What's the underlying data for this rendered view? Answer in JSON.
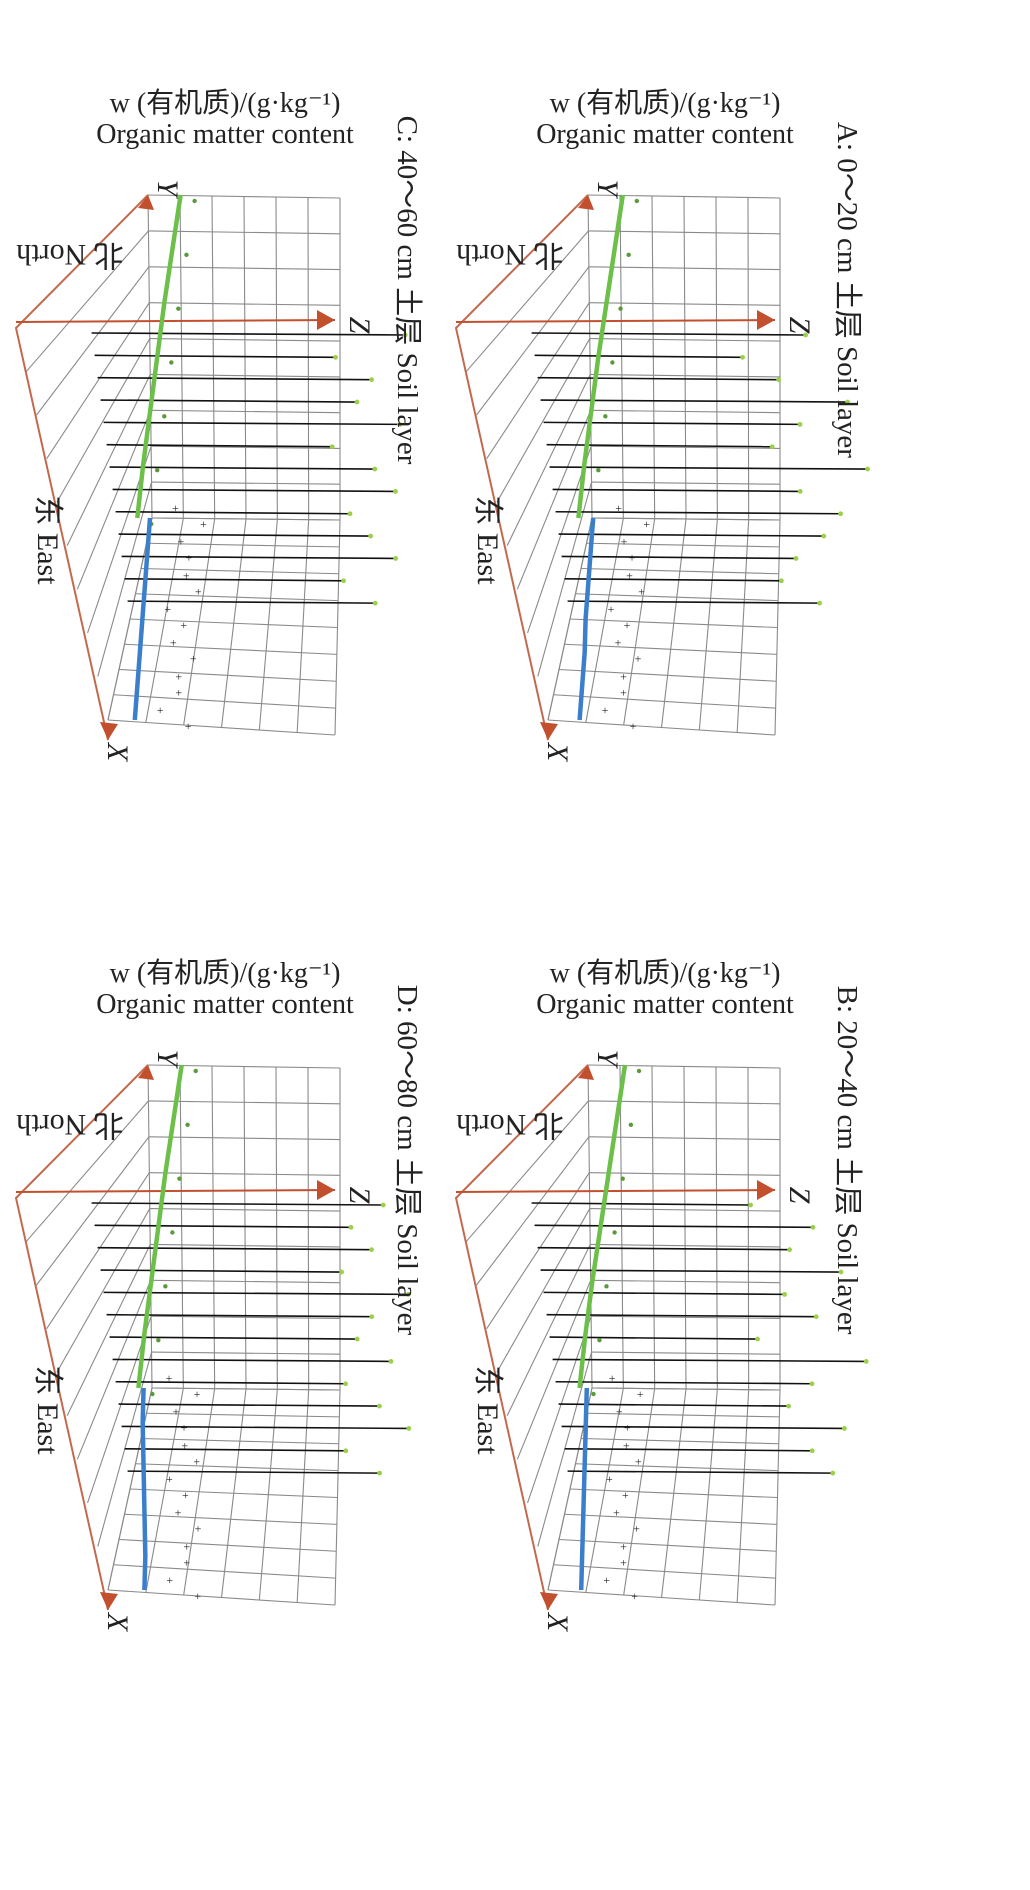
{
  "chart_data": [
    {
      "type": "scatter",
      "panel": "A",
      "title": "A: 0～20 cm 土层 Soil layer",
      "zlabel_cn": "w (有机质)/(g·kg⁻¹)",
      "zlabel_en": "Organic matter content",
      "axis_z": "Z",
      "axis_y": "Y",
      "axis_x": "X",
      "north_label": "北 North",
      "east_label": "东 East",
      "green_trend": [
        0.68,
        0.6,
        0.52,
        0.44,
        0.37,
        0.3,
        0.24
      ],
      "blue_trend": [
        0.12,
        0.15,
        0.18,
        0.21,
        0.25,
        0.28,
        0.31
      ],
      "stick_heights": [
        0.7,
        0.4,
        0.55,
        0.85,
        0.62,
        0.48,
        0.9,
        0.58,
        0.75,
        0.66,
        0.52,
        0.44,
        0.6
      ]
    },
    {
      "type": "scatter",
      "panel": "B",
      "title": "B: 20～40 cm 土层 Soil layer",
      "zlabel_cn": "w (有机质)/(g·kg⁻¹)",
      "zlabel_en": "Organic matter content",
      "axis_z": "Z",
      "axis_y": "Y",
      "axis_x": "X",
      "north_label": "北 North",
      "east_label": "东 East",
      "green_trend": [
        0.7,
        0.62,
        0.54,
        0.46,
        0.38,
        0.31,
        0.25
      ],
      "blue_trend": [
        0.08,
        0.12,
        0.16,
        0.2,
        0.24,
        0.28,
        0.32
      ],
      "stick_heights": [
        0.45,
        0.72,
        0.6,
        0.82,
        0.55,
        0.68,
        0.4,
        0.88,
        0.62,
        0.5,
        0.74,
        0.58,
        0.66
      ]
    },
    {
      "type": "scatter",
      "panel": "C",
      "title": "C: 40～60 cm 土层 Soil layer",
      "zlabel_cn": "w (有机质)/(g·kg⁻¹)",
      "zlabel_en": "Organic matter content",
      "axis_z": "Z",
      "axis_y": "Y",
      "axis_x": "X",
      "north_label": "北 North",
      "east_label": "东 East",
      "green_trend": [
        0.66,
        0.58,
        0.5,
        0.43,
        0.36,
        0.29,
        0.23
      ],
      "blue_trend": [
        0.1,
        0.13,
        0.16,
        0.19,
        0.22,
        0.25,
        0.28
      ],
      "stick_heights": [
        0.88,
        0.55,
        0.7,
        0.62,
        0.8,
        0.48,
        0.66,
        0.74,
        0.52,
        0.6,
        0.7,
        0.45,
        0.58
      ]
    },
    {
      "type": "scatter",
      "panel": "D",
      "title": "D: 60～80 cm 土层 Soil layer",
      "zlabel_cn": "w (有机质)/(g·kg⁻¹)",
      "zlabel_en": "Organic matter content",
      "axis_z": "Z",
      "axis_y": "Y",
      "axis_x": "X",
      "north_label": "北 North",
      "east_label": "东 East",
      "green_trend": [
        0.67,
        0.59,
        0.51,
        0.44,
        0.37,
        0.3,
        0.24
      ],
      "blue_trend": [
        0.06,
        0.1,
        0.15,
        0.2,
        0.25,
        0.3,
        0.34
      ],
      "stick_heights": [
        0.78,
        0.62,
        0.7,
        0.55,
        0.84,
        0.66,
        0.58,
        0.72,
        0.5,
        0.64,
        0.76,
        0.46,
        0.6
      ]
    }
  ],
  "colors": {
    "green_trend": "#6cc04a",
    "blue_trend": "#3b7fcc",
    "sticks": "#111111",
    "axes": "#c2502e",
    "grid": "#8a8a8a"
  }
}
